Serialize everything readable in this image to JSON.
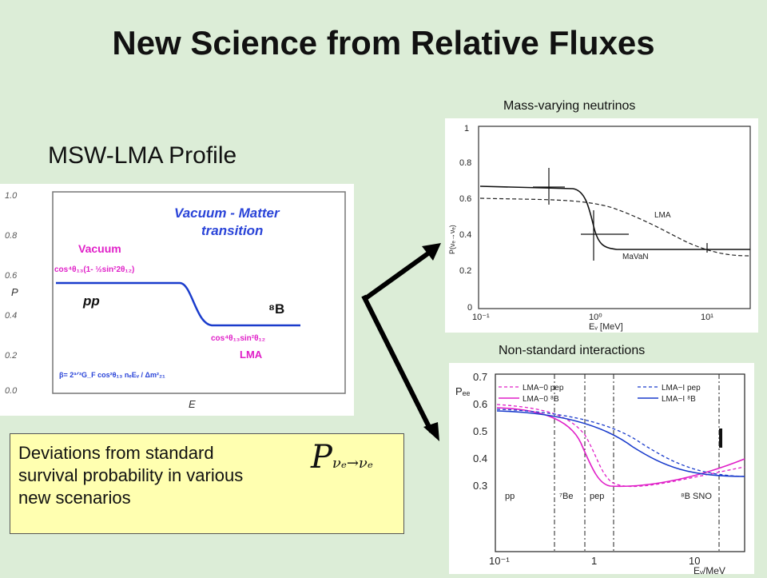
{
  "slide": {
    "title": "New Science from Relative Fluxes",
    "subtitle": "MSW-LMA Profile"
  },
  "left_plot": {
    "ylabel": "P",
    "xlabel": "E",
    "yticks": [
      "1.0",
      "0.8",
      "0.6",
      "0.4",
      "0.2",
      "0.0"
    ],
    "heading_line1": "Vacuum - Matter",
    "heading_line2": "transition",
    "vacuum_label": "Vacuum",
    "vacuum_formula": "cos⁴θ₁₃(1- ½sin²2θ₁₂)",
    "pp_label": "pp",
    "b8_label": "⁸B",
    "lma_formula": "cos⁴θ₁₃sin²θ₁₂",
    "lma_label": "LMA",
    "beta_formula": "β= 2³ᐟ²G_F cos²θ₁₃ nₑEᵥ / Δm²₂₁"
  },
  "top_right_plot": {
    "caption": "Mass-varying neutrinos",
    "ylabel": "P(νₑ→νₑ)",
    "xlabel": "Eᵥ [MeV]",
    "yticks": [
      "1",
      "0.8",
      "0.6",
      "0.4",
      "0.2",
      "0"
    ],
    "xticks": [
      "10⁻¹",
      "10⁰",
      "10¹"
    ],
    "lma_label": "LMA",
    "mavan_label": "MaVaN"
  },
  "bottom_right_plot": {
    "caption": "Non-standard interactions",
    "ylabel": "Pₑₑ",
    "xlabel": "Eᵥ/MeV",
    "yticks": [
      "0.7",
      "0.6",
      "0.5",
      "0.4",
      "0.3"
    ],
    "xticks": [
      "10⁻¹",
      "1",
      "10"
    ],
    "legend": [
      "LMA−0 pep",
      "LMA−0 ⁸B",
      "LMA−I pep",
      "LMA−I ⁸B"
    ],
    "region_labels": [
      "pp",
      "⁷Be",
      "pep",
      "⁸B SNO"
    ]
  },
  "note": {
    "text": "Deviations from standard\nsurvival probability in various\nnew scenarios",
    "formula_main": "P",
    "formula_sub": "νₑ→νₑ"
  },
  "colors": {
    "background": "#dcedd7",
    "note_bg": "#ffffb0",
    "curve_blue": "#1a3ccc",
    "label_magenta": "#e020c8",
    "arrow": "#000000"
  }
}
